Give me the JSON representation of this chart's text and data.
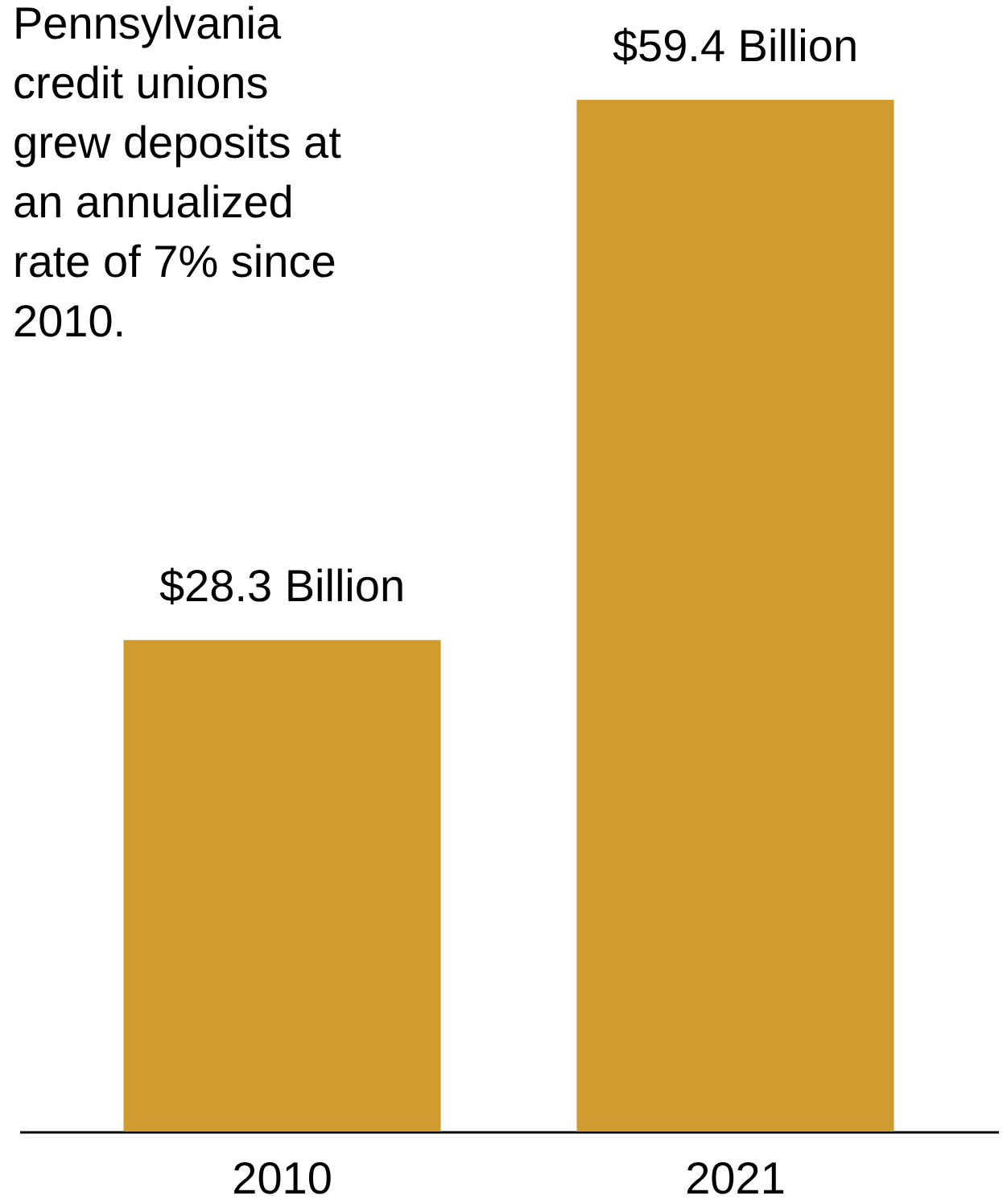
{
  "chart_data": {
    "type": "bar",
    "categories": [
      "2010",
      "2021"
    ],
    "values": [
      28.3,
      59.4
    ],
    "color": "#d09b2f",
    "value_labels": [
      "$28.3 Billion",
      "$59.4 Billion"
    ],
    "annotations": [
      "Pennsylvania credit unions grew deposits at an annualized rate of 7% since 2010."
    ]
  }
}
